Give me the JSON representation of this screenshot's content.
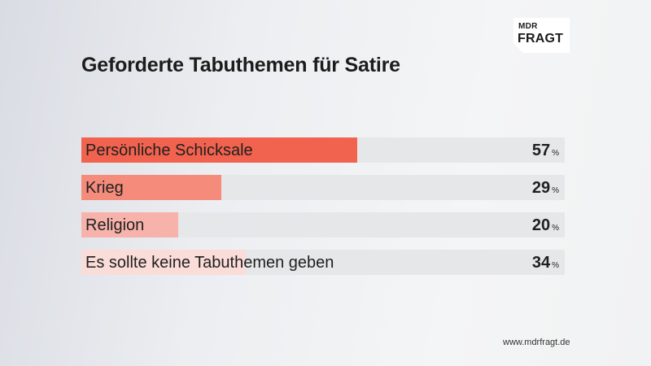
{
  "brand": {
    "line1": "MDR",
    "line2": "FRAGT"
  },
  "footer": {
    "url": "www.mdrfragt.de"
  },
  "colors": {
    "row_background": "#e6e7e9",
    "bars": [
      "#f2634f",
      "#f48b7b",
      "#f7b3ab",
      "#fadcd9"
    ]
  },
  "chart_data": {
    "type": "bar",
    "orientation": "horizontal",
    "title": "Geforderte Tabuthemen für Satire",
    "unit": "%",
    "categories": [
      "Persönliche Schicksale",
      "Krieg",
      "Religion",
      "Es sollte keine Tabuthemen geben"
    ],
    "values": [
      57,
      29,
      20,
      34
    ],
    "xlim": [
      0,
      100
    ],
    "grid": false,
    "legend": "none"
  }
}
